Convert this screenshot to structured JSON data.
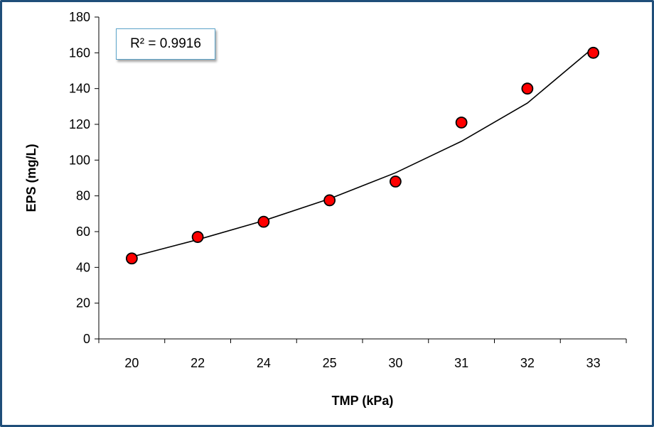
{
  "chart_data": {
    "type": "scatter",
    "categories": [
      "20",
      "22",
      "24",
      "25",
      "30",
      "31",
      "32",
      "33"
    ],
    "values": [
      45,
      57,
      65.5,
      77.5,
      88,
      121,
      140,
      160
    ],
    "xlabel": "TMP (kPa)",
    "ylabel": "EPS (mg/L)",
    "ylim": [
      0,
      180
    ],
    "yticks": [
      0,
      20,
      40,
      60,
      80,
      100,
      120,
      140,
      160,
      180
    ],
    "grid": false,
    "legend": "none",
    "trendline": {
      "type": "polynomial",
      "label": "R² = 0.9916",
      "fitted": [
        45.9,
        55.5,
        66.1,
        78.4,
        92.9,
        110.5,
        131.9,
        162.8
      ]
    },
    "marker_color": "#FF0000",
    "marker_edge_color": "#000000",
    "frame_color": "#1F4E79"
  }
}
